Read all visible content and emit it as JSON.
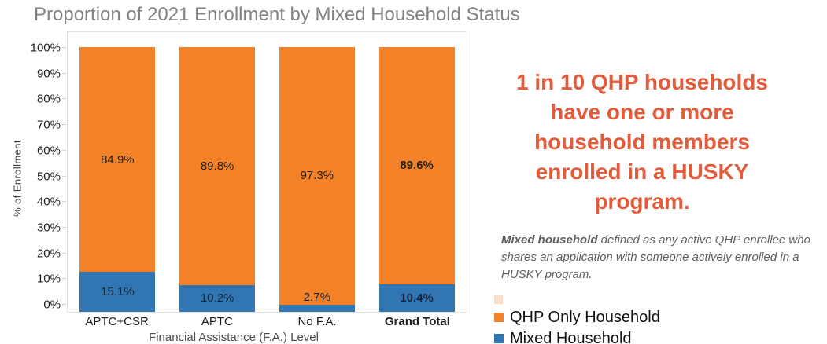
{
  "chart_data": {
    "type": "bar",
    "stacked": true,
    "title": "Proportion of 2021 Enrollment by Mixed Household Status",
    "xlabel": "Financial Assistance (F.A.) Level",
    "ylabel": "% of Enrollment",
    "categories": [
      "APTC+CSR",
      "APTC",
      "No F.A.",
      "Grand Total"
    ],
    "emphasis_category": "Grand Total",
    "series": [
      {
        "name": "QHP Only Household",
        "color": "#F28127",
        "values": [
          84.9,
          89.8,
          97.3,
          89.6
        ]
      },
      {
        "name": "Mixed Household",
        "color": "#2F76B3",
        "values": [
          15.1,
          10.2,
          2.7,
          10.4
        ]
      }
    ],
    "value_suffix": "%",
    "ylim": [
      0,
      100
    ],
    "y_ticks": [
      "0%",
      "10%",
      "20%",
      "30%",
      "40%",
      "50%",
      "60%",
      "70%",
      "80%",
      "90%",
      "100%"
    ],
    "grid": false,
    "legend_position": "bottom-right"
  },
  "callout": {
    "text": "1 in 10 QHP households have one or more household members enrolled in a HUSKY program.",
    "color": "#E25C3B"
  },
  "note": {
    "lead": "Mixed household",
    "rest": " defined as any active QHP enrollee who shares an application with someone actively enrolled in a HUSKY program."
  },
  "colors": {
    "title_gray": "#828282",
    "legend_ghost": "#F8E0C8"
  }
}
